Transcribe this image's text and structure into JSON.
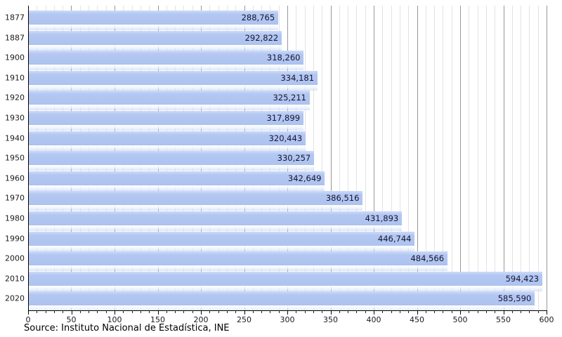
{
  "chart_data": {
    "type": "bar",
    "orientation": "horizontal",
    "title": "",
    "categories": [
      "1877",
      "1887",
      "1900",
      "1910",
      "1920",
      "1930",
      "1940",
      "1950",
      "1960",
      "1970",
      "1980",
      "1990",
      "2000",
      "2010",
      "2020"
    ],
    "values": [
      288765,
      292822,
      318260,
      334181,
      325211,
      317899,
      320443,
      330257,
      342649,
      386516,
      431893,
      446744,
      484566,
      594423,
      585590
    ],
    "value_labels": [
      "288,765",
      "292,822",
      "318,260",
      "334,181",
      "325,211",
      "317,899",
      "320,443",
      "330,257",
      "342,649",
      "386,516",
      "431,893",
      "446,744",
      "484,566",
      "594,423",
      "585,590"
    ],
    "xlabel": "",
    "ylabel": "",
    "xlim": [
      0,
      600
    ],
    "x_axis_values_divisor": 1000,
    "x_major_step": 50,
    "x_minor_step": 10,
    "x_tick_labels": [
      "0",
      "50",
      "100",
      "150",
      "200",
      "250",
      "300",
      "350",
      "400",
      "450",
      "500",
      "550",
      "600"
    ],
    "grid": "vertical-minor-and-major",
    "legend": "none"
  },
  "source_note": "Source: Instituto Nacional de Estadística, INE",
  "colors": {
    "bar": "#b2c7f2",
    "bar_highlight": "#cedbf8",
    "value_text": "#14142e",
    "grid_minor": "#e3e3e7",
    "grid_major": "#999999",
    "axis": "#000000"
  }
}
